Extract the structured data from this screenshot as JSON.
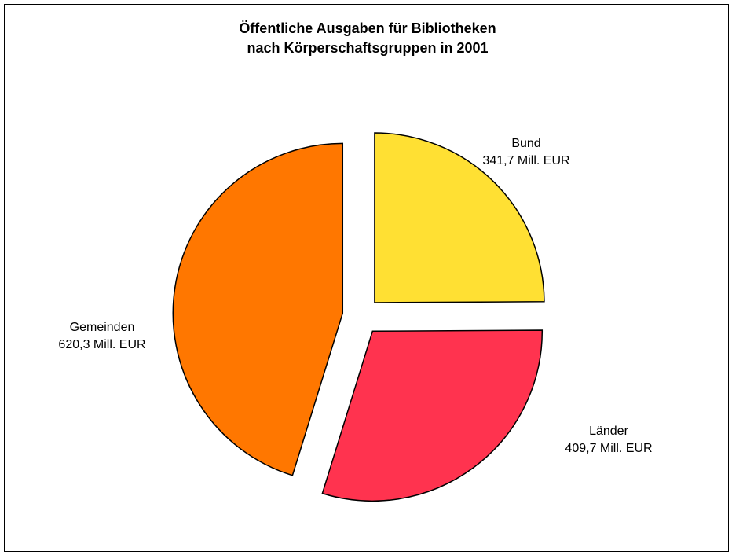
{
  "chart_data": {
    "type": "pie",
    "title": [
      "Öffentliche Ausgaben für Bibliotheken",
      "nach Körperschaftsgruppen in 2001"
    ],
    "categories": [
      "Bund",
      "Länder",
      "Gemeinden"
    ],
    "values": [
      341.7,
      409.7,
      620.3
    ],
    "value_labels": [
      "341,7 Mill. EUR",
      "409,7 Mill. EUR",
      "620,3 Mill. EUR"
    ],
    "colors": [
      "#ffe033",
      "#ff334f",
      "#ff7700"
    ]
  }
}
